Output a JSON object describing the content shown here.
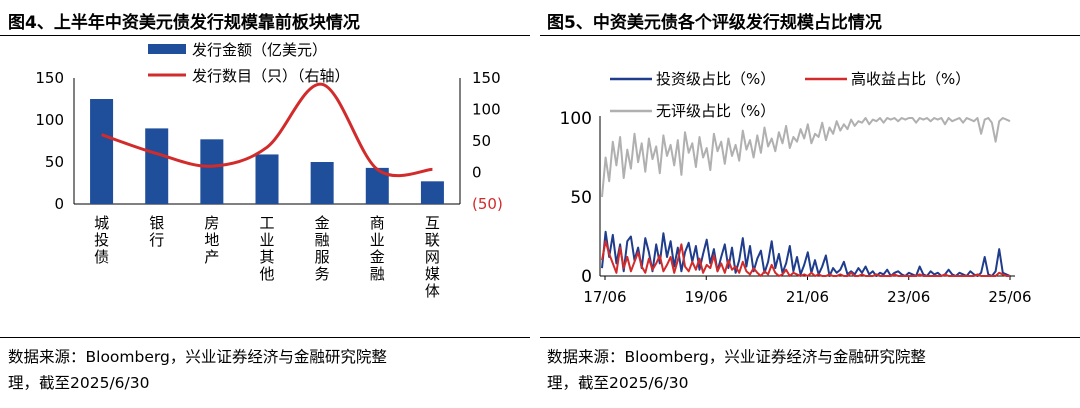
{
  "left": {
    "title": "图4、上半年中资美元债发行规模靠前板块情况",
    "source_line1": "数据来源：Bloomberg，兴业证券经济与金融研究院整",
    "source_line2": "理，截至2025/6/30"
  },
  "right": {
    "title": "图5、中资美元债各个评级发行规模占比情况",
    "source_line1": "数据来源：Bloomberg，兴业证券经济与金融研究院整",
    "source_line2": "理，截至2025/6/30"
  },
  "colors": {
    "navy": "#1F3D8C",
    "red": "#D22B2B",
    "gray": "#B0B0B0",
    "bar": "#1F4E9A"
  },
  "chart_data": [
    {
      "type": "bar",
      "categories": [
        "城投债",
        "银行",
        "房地产",
        "工业其他",
        "金融服务",
        "商业金融",
        "互联网媒体"
      ],
      "series": [
        {
          "name": "发行金额（亿美元）",
          "type": "bar",
          "axis": "left",
          "values": [
            125,
            90,
            77,
            59,
            50,
            43,
            27
          ]
        },
        {
          "name": "发行数目（只）（右轴）",
          "type": "line",
          "axis": "right",
          "values": [
            60,
            30,
            10,
            40,
            140,
            5,
            5
          ]
        }
      ],
      "y_left": {
        "min": 0,
        "max": 150,
        "ticks": [
          "0",
          "50",
          "100",
          "150"
        ]
      },
      "y_right": {
        "min": -50,
        "max": 150,
        "ticks": [
          "150",
          "100",
          "50",
          "0",
          "(50)"
        ]
      },
      "legend": [
        "发行金额（亿美元）",
        "发行数目（只）（右轴）"
      ]
    },
    {
      "type": "line",
      "x_ticks": [
        "17/06",
        "19/06",
        "21/06",
        "23/06",
        "25/06"
      ],
      "y": {
        "min": 0,
        "max": 100,
        "ticks": [
          "0",
          "50",
          "100"
        ]
      },
      "legend": [
        "投资级占比（%）",
        "高收益占比（%）",
        "无评级占比（%）"
      ],
      "series": [
        {
          "name": "投资级占比（%）",
          "color": "navy",
          "values": [
            5,
            28,
            12,
            26,
            8,
            20,
            3,
            22,
            25,
            10,
            18,
            5,
            24,
            15,
            3,
            20,
            8,
            27,
            12,
            22,
            6,
            18,
            3,
            15,
            21,
            9,
            19,
            4,
            14,
            23,
            8,
            17,
            3,
            12,
            20,
            5,
            18,
            2,
            10,
            24,
            6,
            19,
            3,
            11,
            16,
            2,
            9,
            22,
            5,
            14,
            2,
            8,
            19,
            3,
            12,
            1,
            7,
            15,
            2,
            10,
            1,
            6,
            13,
            0,
            5,
            2,
            4,
            9,
            1,
            3,
            1,
            5,
            2,
            6,
            1,
            3,
            0,
            2,
            1,
            4,
            0,
            2,
            3,
            1,
            0,
            2,
            1,
            0,
            6,
            1,
            0,
            3,
            1,
            2,
            0,
            1,
            4,
            1,
            0,
            2,
            1,
            0,
            3,
            1,
            0,
            2,
            12,
            1,
            0,
            3,
            17,
            2,
            1,
            0
          ]
        },
        {
          "name": "高收益占比（%）",
          "color": "red",
          "values": [
            10,
            22,
            14,
            8,
            2,
            18,
            5,
            12,
            3,
            9,
            15,
            6,
            2,
            11,
            4,
            8,
            13,
            3,
            7,
            12,
            2,
            10,
            20,
            6,
            3,
            9,
            4,
            11,
            2,
            7,
            5,
            13,
            3,
            8,
            2,
            10,
            4,
            6,
            2,
            9,
            3,
            1,
            5,
            2,
            0,
            3,
            1,
            7,
            2,
            0,
            1,
            4,
            0,
            2,
            1,
            0,
            1,
            0,
            2,
            0,
            1,
            0,
            0,
            1,
            0,
            0,
            1,
            0,
            0,
            2,
            0,
            0,
            1,
            0,
            0,
            0,
            1,
            0,
            0,
            0,
            0,
            1,
            0,
            0,
            0,
            0,
            0,
            0,
            1,
            0,
            0,
            0,
            0,
            0,
            0,
            1,
            0,
            0,
            0,
            0,
            0,
            0,
            0,
            0,
            1,
            0,
            0,
            0,
            0,
            0,
            2,
            1,
            0,
            0
          ]
        },
        {
          "name": "无评级占比（%）",
          "color": "gray",
          "values": [
            50,
            75,
            60,
            85,
            70,
            88,
            62,
            80,
            68,
            90,
            72,
            84,
            66,
            87,
            74,
            82,
            65,
            89,
            76,
            83,
            70,
            86,
            64,
            91,
            78,
            84,
            69,
            88,
            75,
            81,
            67,
            90,
            79,
            85,
            71,
            87,
            76,
            83,
            73,
            92,
            80,
            86,
            75,
            89,
            78,
            94,
            82,
            87,
            79,
            91,
            84,
            95,
            81,
            88,
            85,
            93,
            87,
            96,
            84,
            90,
            88,
            97,
            86,
            94,
            90,
            98,
            92,
            96,
            93,
            99,
            95,
            98,
            97,
            100,
            96,
            99,
            98,
            100,
            97,
            100,
            99,
            100,
            98,
            100,
            99,
            100,
            100,
            97,
            100,
            99,
            100,
            98,
            100,
            99,
            100,
            96,
            100,
            98,
            99,
            100,
            97,
            100,
            99,
            98,
            100,
            90,
            99,
            100,
            97,
            85,
            98,
            100,
            99,
            98
          ]
        }
      ]
    }
  ]
}
